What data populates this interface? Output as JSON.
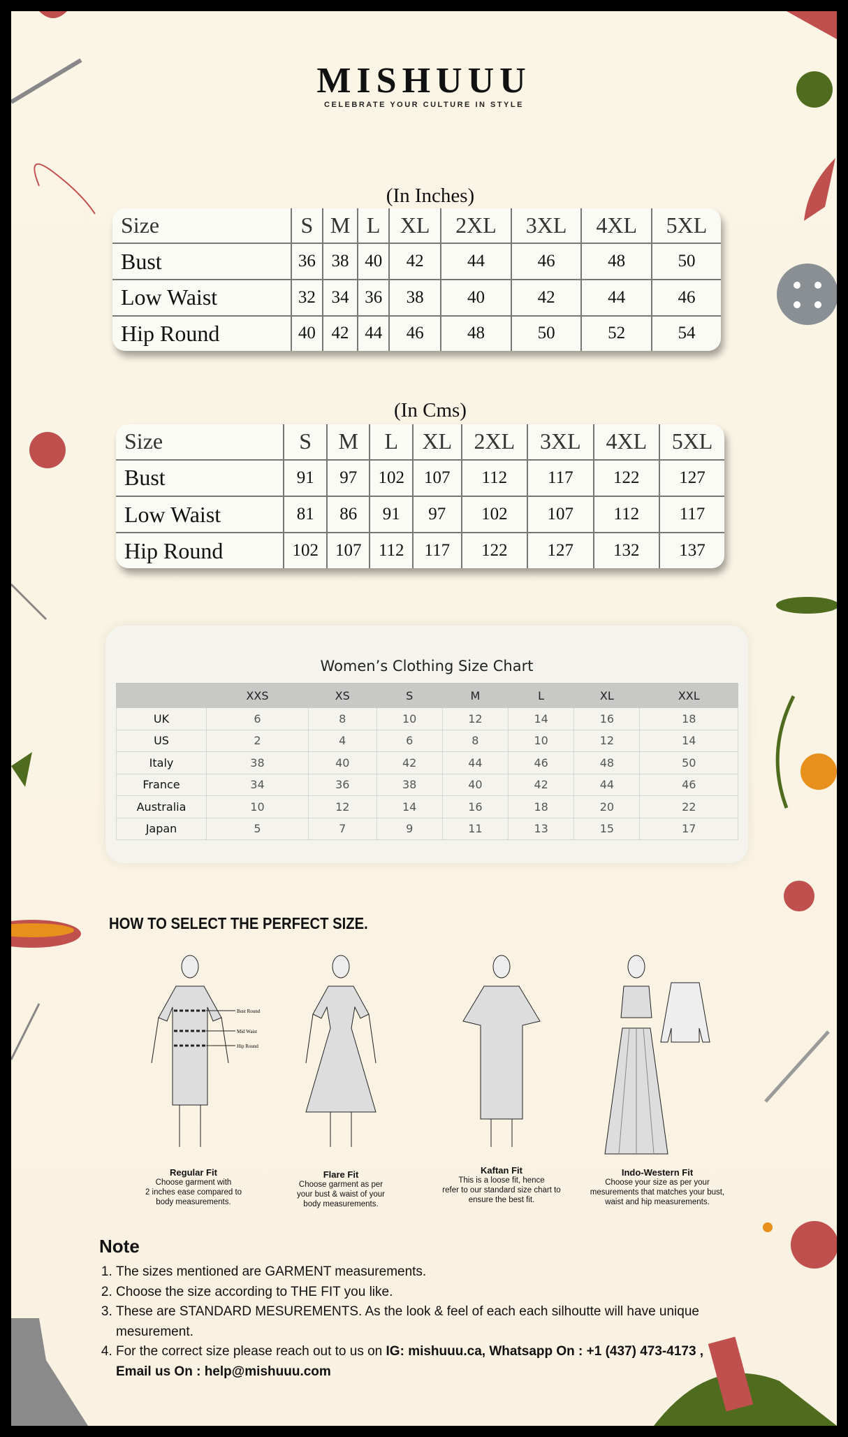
{
  "brand": {
    "name": "MISHUUU",
    "tagline": "CELEBRATE YOUR CULTURE IN STYLE"
  },
  "inches": {
    "title": "(In Inches)",
    "header": [
      "Size",
      "S",
      "M",
      "L",
      "XL",
      "2XL",
      "3XL",
      "4XL",
      "5XL"
    ],
    "rows": [
      [
        "Bust",
        "36",
        "38",
        "40",
        "42",
        "44",
        "46",
        "48",
        "50"
      ],
      [
        "Low Waist",
        "32",
        "34",
        "36",
        "38",
        "40",
        "42",
        "44",
        "46"
      ],
      [
        "Hip Round",
        "40",
        "42",
        "44",
        "46",
        "48",
        "50",
        "52",
        "54"
      ]
    ]
  },
  "cms": {
    "title": "(In Cms)",
    "header": [
      "Size",
      "S",
      "M",
      "L",
      "XL",
      "2XL",
      "3XL",
      "4XL",
      "5XL"
    ],
    "rows": [
      [
        "Bust",
        "91",
        "97",
        "102",
        "107",
        "112",
        "117",
        "122",
        "127"
      ],
      [
        "Low Waist",
        "81",
        "86",
        "91",
        "97",
        "102",
        "107",
        "112",
        "117"
      ],
      [
        "Hip Round",
        "102",
        "107",
        "112",
        "117",
        "122",
        "127",
        "132",
        "137"
      ]
    ]
  },
  "womens": {
    "title": "Women’s Clothing Size Chart",
    "header": [
      "",
      "XXS",
      "XS",
      "S",
      "M",
      "L",
      "XL",
      "XXL"
    ],
    "rows": [
      [
        "UK",
        "6",
        "8",
        "10",
        "12",
        "14",
        "16",
        "18"
      ],
      [
        "US",
        "2",
        "4",
        "6",
        "8",
        "10",
        "12",
        "14"
      ],
      [
        "Italy",
        "38",
        "40",
        "42",
        "44",
        "46",
        "48",
        "50"
      ],
      [
        "France",
        "34",
        "36",
        "38",
        "40",
        "42",
        "44",
        "46"
      ],
      [
        "Australia",
        "10",
        "12",
        "14",
        "16",
        "18",
        "20",
        "22"
      ],
      [
        "Japan",
        "5",
        "7",
        "9",
        "11",
        "13",
        "15",
        "17"
      ]
    ]
  },
  "guide": {
    "title": "HOW TO SELECT THE PERFECT SIZE.",
    "labels": [
      "Bust Round",
      "Mid Waist",
      "Hip Round"
    ],
    "fits": [
      {
        "name": "Regular Fit",
        "lines": [
          "Choose garment with",
          "2 inches ease compared to",
          "body measurements."
        ]
      },
      {
        "name": "Flare Fit",
        "lines": [
          "Choose garment as per",
          "your bust & waist of your",
          "body measurements."
        ]
      },
      {
        "name": "Kaftan Fit",
        "lines": [
          "This is a loose fit, hence",
          "refer to our standard size chart to",
          "ensure the best fit."
        ]
      },
      {
        "name": "Indo-Western Fit",
        "lines": [
          "Choose your size as per your",
          "mesurements that matches your bust,",
          "waist and hip measurements."
        ]
      }
    ]
  },
  "note": {
    "title": "Note",
    "items": [
      "The sizes mentioned are GARMENT measurements.",
      "Choose the size according to THE FIT you like.",
      "These are STANDARD MESUREMENTS. As the look & feel of each each silhoutte will have unique mesurement.",
      "For the correct size please reach out to us on "
    ],
    "contact": {
      "ig": "IG: mishuuu.ca, Whatsapp On : +1 (437) 473-4173 , Email us On : help@mishuuu.com"
    }
  },
  "colors": {
    "background": "#fbf5e6",
    "accent_red": "#c0504d",
    "accent_green": "#4e6b1e",
    "accent_orange": "#e8901c"
  }
}
